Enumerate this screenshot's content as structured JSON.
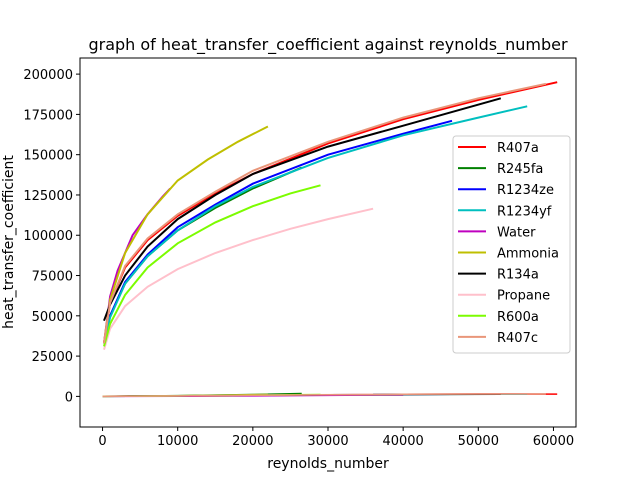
{
  "chart_data": {
    "type": "line",
    "title": "graph of heat_transfer_coefficient against reynolds_number",
    "xlabel": "reynolds_number",
    "ylabel": "heat_transfer_coefficient",
    "xlim": [
      -3000,
      63000
    ],
    "ylim": [
      -19000,
      210000
    ],
    "xticks": [
      0,
      10000,
      20000,
      30000,
      40000,
      50000,
      60000
    ],
    "yticks": [
      0,
      25000,
      50000,
      75000,
      100000,
      125000,
      150000,
      175000,
      200000
    ],
    "legend_position": "right",
    "series": [
      {
        "name": "R407a",
        "color": "#ff0000",
        "x": [
          200,
          1000,
          3000,
          6000,
          10000,
          15000,
          20000,
          30000,
          40000,
          50000,
          60500
        ],
        "y": [
          33000,
          58000,
          80000,
          97000,
          112000,
          126000,
          138000,
          157000,
          172000,
          184000,
          195000
        ],
        "low_x": [
          0,
          10000,
          20000,
          30000,
          40000,
          50000,
          60500
        ],
        "low_y": [
          100,
          200,
          500,
          900,
          1300,
          1500,
          1400
        ]
      },
      {
        "name": "R245fa",
        "color": "#008000",
        "x": [
          200,
          1000,
          3000,
          6000,
          10000,
          15000,
          20000,
          26500
        ],
        "y": [
          33000,
          50000,
          70000,
          87000,
          103000,
          117000,
          129000,
          142000
        ],
        "low_x": [
          0,
          10000,
          20000,
          26500
        ],
        "low_y": [
          0,
          500,
          1200,
          1800
        ]
      },
      {
        "name": "R1234ze",
        "color": "#0000ff",
        "x": [
          200,
          1000,
          3000,
          6000,
          10000,
          15000,
          20000,
          30000,
          40000,
          46500
        ],
        "y": [
          33000,
          50000,
          71000,
          88000,
          105000,
          119000,
          132000,
          150000,
          163000,
          171000
        ],
        "low_x": [
          0,
          10000,
          20000,
          30000,
          40000,
          46500
        ],
        "low_y": [
          0,
          300,
          700,
          1000,
          1200,
          1300
        ]
      },
      {
        "name": "R1234yf",
        "color": "#00bfbf",
        "x": [
          200,
          1000,
          3000,
          6000,
          10000,
          15000,
          20000,
          30000,
          40000,
          50000,
          56500
        ],
        "y": [
          33000,
          49000,
          70000,
          87000,
          103000,
          118000,
          130000,
          148000,
          162000,
          173000,
          180000
        ],
        "low_x": [
          0,
          10000,
          20000,
          30000,
          40000,
          50000,
          56500
        ],
        "low_y": [
          0,
          300,
          700,
          1000,
          1200,
          1300,
          1300
        ]
      },
      {
        "name": "Water",
        "color": "#bf00bf",
        "x": [
          200,
          1000,
          2000,
          4000,
          6000,
          8000,
          9000
        ],
        "y": [
          33000,
          62000,
          78000,
          100000,
          113000,
          124000,
          129000
        ],
        "low_x": [
          0,
          10000,
          20000,
          30000,
          40000
        ],
        "low_y": [
          0,
          100,
          300,
          600,
          900
        ]
      },
      {
        "name": "Ammonia",
        "color": "#bfbf00",
        "x": [
          200,
          1000,
          3000,
          6000,
          10000,
          14000,
          18000,
          22000
        ],
        "y": [
          33000,
          60000,
          89000,
          113000,
          134000,
          147000,
          158000,
          167500
        ],
        "low_x": [
          0,
          10000,
          22000
        ],
        "low_y": [
          0,
          400,
          1200
        ]
      },
      {
        "name": "R134a",
        "color": "#000000",
        "x": [
          200,
          1000,
          3000,
          6000,
          10000,
          15000,
          20000,
          30000,
          40000,
          53000
        ],
        "y": [
          47000,
          57000,
          75000,
          93000,
          110000,
          125000,
          138000,
          155000,
          168000,
          185000
        ],
        "low_x": [
          0,
          10000,
          20000,
          30000,
          40000,
          53000
        ],
        "low_y": [
          100,
          300,
          700,
          1000,
          1200,
          1300
        ]
      },
      {
        "name": "Propane",
        "color": "#ffc0cb",
        "x": [
          200,
          1000,
          3000,
          6000,
          10000,
          15000,
          20000,
          25000,
          30000,
          36000
        ],
        "y": [
          29000,
          42000,
          56000,
          68000,
          79000,
          89000,
          97000,
          104000,
          110000,
          116500
        ],
        "low_x": [
          0,
          10000,
          20000,
          30000,
          36000
        ],
        "low_y": [
          0,
          300,
          700,
          1100,
          1300
        ]
      },
      {
        "name": "R600a",
        "color": "#7cfc00",
        "x": [
          200,
          1000,
          3000,
          6000,
          10000,
          15000,
          20000,
          25000,
          29000
        ],
        "y": [
          31000,
          45000,
          63000,
          80000,
          95000,
          108000,
          118000,
          126000,
          131000
        ],
        "low_x": [
          0,
          10000,
          20000,
          29000
        ],
        "low_y": [
          0,
          300,
          800,
          1200
        ]
      },
      {
        "name": "R407c",
        "color": "#e9967a",
        "x": [
          200,
          1000,
          3000,
          6000,
          10000,
          15000,
          20000,
          30000,
          40000,
          50000,
          59000
        ],
        "y": [
          33000,
          58000,
          81000,
          98000,
          113000,
          127000,
          140000,
          158000,
          173000,
          185000,
          194000
        ],
        "low_x": [
          0,
          10000,
          20000,
          30000,
          40000,
          50000,
          59000
        ],
        "low_y": [
          0,
          300,
          700,
          1000,
          1300,
          1500,
          1500
        ]
      }
    ]
  }
}
